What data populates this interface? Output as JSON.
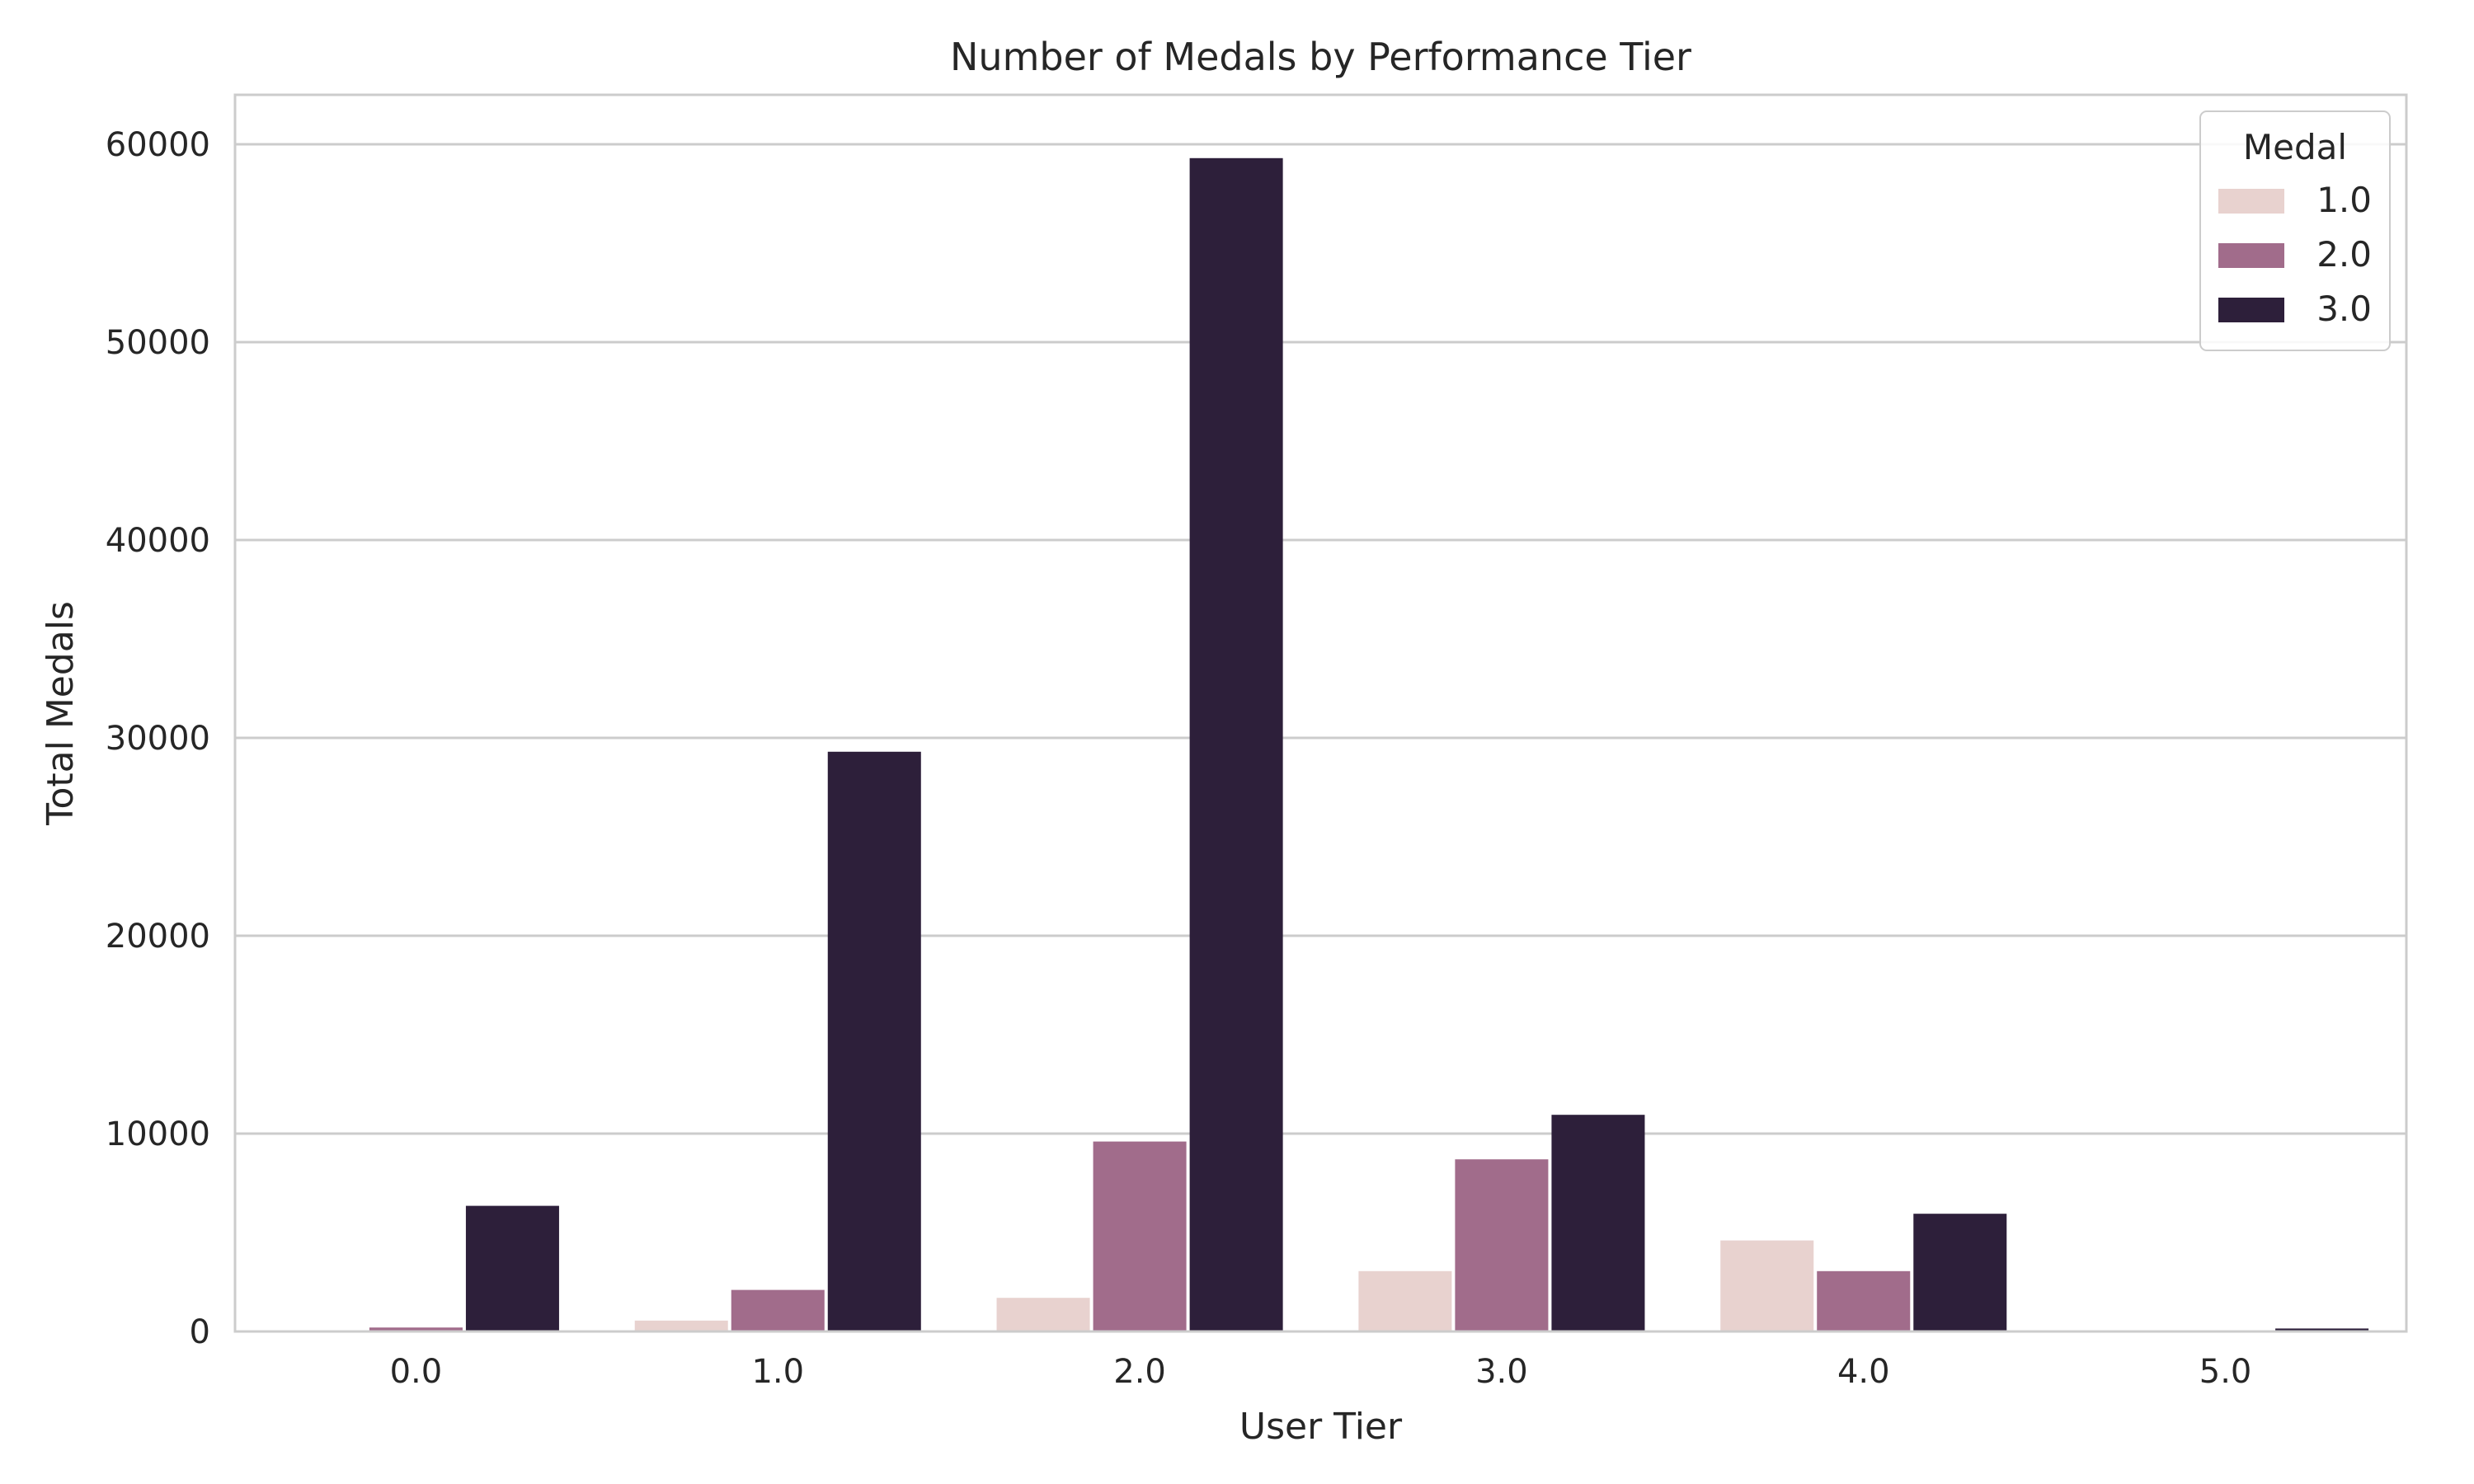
{
  "chart_data": {
    "type": "bar",
    "title": "Number of Medals by Performance Tier",
    "xlabel": "User Tier",
    "ylabel": "Total Medals",
    "categories": [
      "0.0",
      "1.0",
      "2.0",
      "3.0",
      "4.0",
      "5.0"
    ],
    "series": [
      {
        "name": "1.0",
        "color": "#e8d2cf",
        "values": [
          0,
          550,
          1700,
          3050,
          4600,
          0
        ]
      },
      {
        "name": "2.0",
        "color": "#a16c8b",
        "values": [
          200,
          2100,
          9600,
          8700,
          3050,
          0
        ]
      },
      {
        "name": "3.0",
        "color": "#2d1f3a",
        "values": [
          6350,
          29300,
          59300,
          10950,
          5950,
          150
        ]
      }
    ],
    "ylim": [
      0,
      62500
    ],
    "yticks": [
      0,
      10000,
      20000,
      30000,
      40000,
      50000,
      60000
    ],
    "legend": {
      "title": "Medal",
      "position": "top-right"
    },
    "grid": "horizontal"
  }
}
